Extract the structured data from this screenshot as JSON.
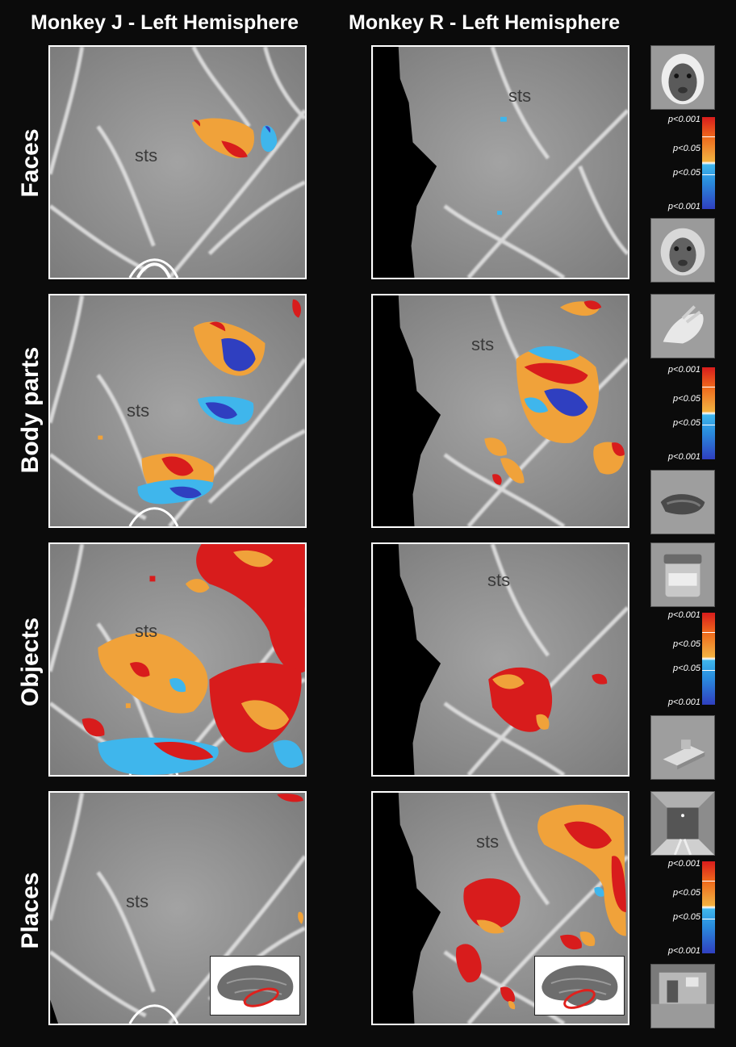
{
  "columns": [
    "Monkey J - Left Hemisphere",
    "Monkey R - Left Hemisphere"
  ],
  "rows": [
    "Faces",
    "Body parts",
    "Objects",
    "Places"
  ],
  "sulcus_label": "sts",
  "colorbar": {
    "top": "p<0.001",
    "upper_mid": "p<0.05",
    "lower_mid": "p<0.05",
    "bottom": "p<0.001",
    "colors": [
      "#d81c1c",
      "#f0a23a",
      "#3fb6ec",
      "#2f3fc0"
    ]
  },
  "stimulus_icons": [
    [
      "monkey-face-icon",
      "monkey-face-icon"
    ],
    [
      "monkey-hand-icon",
      "monkey-hand-icon"
    ],
    [
      "jar-object-icon",
      "device-object-icon"
    ],
    [
      "room-scene-icon",
      "indoor-scene-icon"
    ]
  ],
  "inset": "brain-outline-icon"
}
